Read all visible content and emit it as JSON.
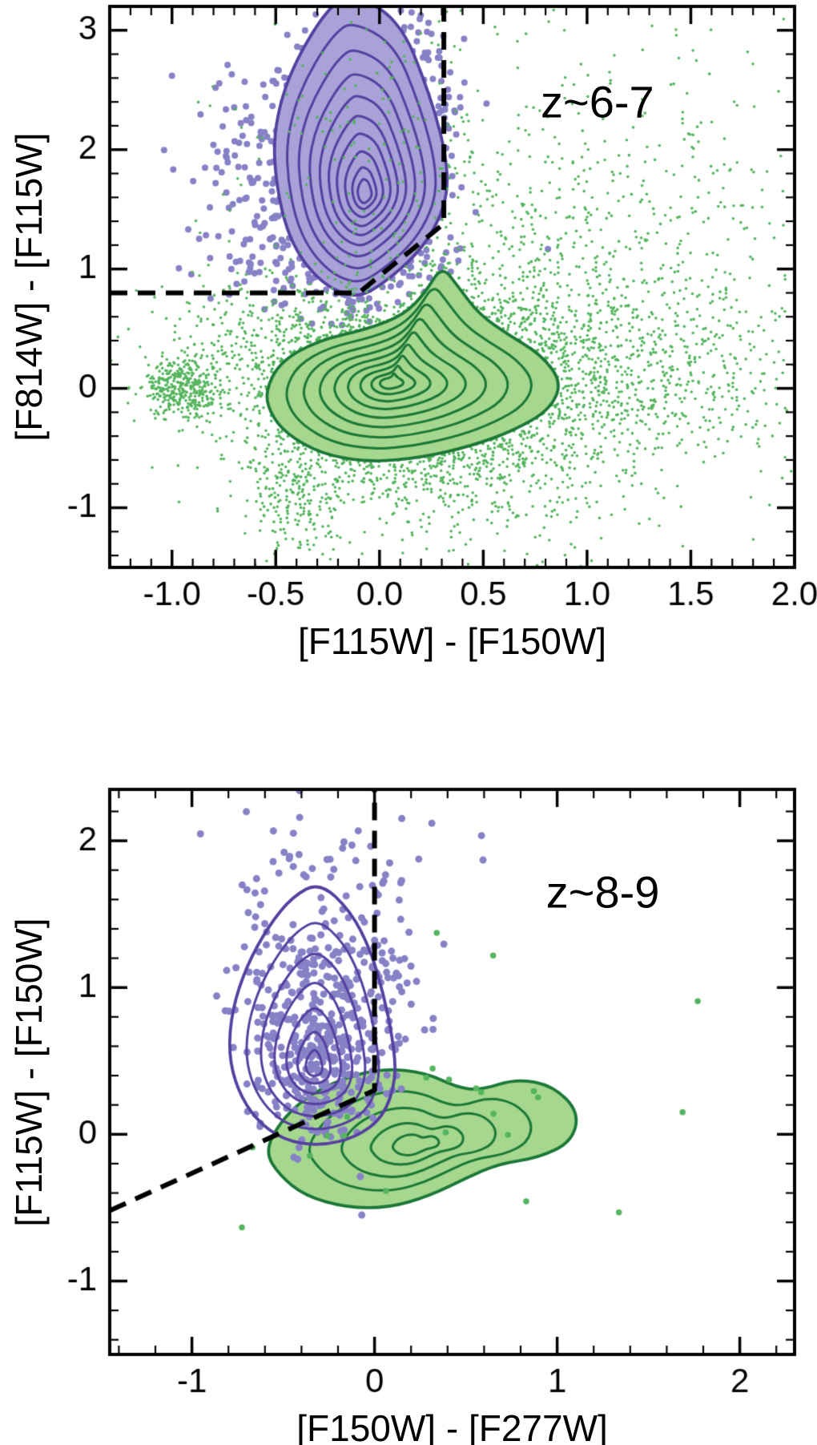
{
  "page": {
    "background": "#ffffff"
  },
  "colors": {
    "purple_point": "#8781c6",
    "purple_contour": "#5540a0",
    "purple_fill": "#a9a2d8",
    "green_point": "#55b45e",
    "green_contour": "#1b7837",
    "green_fill": "#a6d78e",
    "selection_line": "#000000",
    "axis": "#000000"
  },
  "chart_data": [
    {
      "type": "scatter",
      "annotation": {
        "text": "z~6-7",
        "x": 1.05,
        "y": 2.4
      },
      "xlabel": "[F115W] - [F150W]",
      "ylabel": "[F814W] - [F115W]",
      "xlim": [
        -1.3,
        2.0
      ],
      "ylim": [
        -1.5,
        3.2
      ],
      "xticks": {
        "values": [
          -1.0,
          -0.5,
          0.0,
          0.5,
          1.0,
          1.5,
          2.0
        ],
        "labels": [
          "-1.0",
          "-0.5",
          "0.0",
          "0.5",
          "1.0",
          "1.5",
          "2.0"
        ],
        "minor_step": 0.1
      },
      "yticks": {
        "values": [
          -1,
          0,
          1,
          2,
          3
        ],
        "labels": [
          "-1",
          "0",
          "1",
          "2",
          "3"
        ],
        "minor_step": 0.2
      },
      "grid": false,
      "selection_line": {
        "style": "dashed",
        "color": "#000000",
        "points": [
          [
            -1.3,
            0.8
          ],
          [
            -0.1,
            0.8
          ],
          [
            0.31,
            1.38
          ],
          [
            0.31,
            3.2
          ]
        ]
      },
      "series": [
        {
          "id": "purple-scatter",
          "role": "scatter",
          "color": "#8781c6",
          "marker_size": 8,
          "clusters": [
            {
              "cx": -0.1,
              "cy": 1.75,
              "sx": 0.17,
              "sy": 0.48,
              "n": 1000
            },
            {
              "cx": -0.08,
              "cy": 2.6,
              "sx": 0.18,
              "sy": 0.32,
              "n": 280
            },
            {
              "cx": -0.35,
              "cy": 1.7,
              "sx": 0.22,
              "sy": 0.5,
              "n": 230
            },
            {
              "cx": -0.12,
              "cy": 1.05,
              "sx": 0.28,
              "sy": 0.18,
              "n": 110
            },
            {
              "cx": -0.7,
              "cy": 1.8,
              "sx": 0.16,
              "sy": 0.45,
              "n": 45
            },
            {
              "cx": 0.12,
              "cy": 2.25,
              "sx": 0.16,
              "sy": 0.45,
              "n": 120
            }
          ]
        },
        {
          "id": "purple-contours",
          "role": "contour",
          "stroke": "#5540a0",
          "fill": "#a9a2d8",
          "peak": [
            -0.07,
            1.62
          ],
          "levels": [
            1,
            0.86,
            0.73,
            0.61,
            0.5,
            0.4,
            0.31,
            0.22,
            0.14,
            0.08
          ],
          "outline": [
            [
              -0.15,
              3.3
            ],
            [
              0.02,
              3.18
            ],
            [
              0.13,
              2.95
            ],
            [
              0.2,
              2.65
            ],
            [
              0.27,
              2.3
            ],
            [
              0.32,
              1.95
            ],
            [
              0.33,
              1.65
            ],
            [
              0.28,
              1.38
            ],
            [
              0.18,
              1.12
            ],
            [
              0.02,
              0.88
            ],
            [
              -0.1,
              0.76
            ],
            [
              -0.22,
              0.82
            ],
            [
              -0.32,
              0.96
            ],
            [
              -0.4,
              1.15
            ],
            [
              -0.46,
              1.4
            ],
            [
              -0.5,
              1.75
            ],
            [
              -0.51,
              2.1
            ],
            [
              -0.47,
              2.45
            ],
            [
              -0.4,
              2.75
            ],
            [
              -0.3,
              3.05
            ],
            [
              -0.22,
              3.22
            ]
          ]
        },
        {
          "id": "green-scatter",
          "role": "scatter",
          "color": "#55b45e",
          "marker_size": 3.6,
          "clusters": [
            {
              "cx": 0.1,
              "cy": -0.02,
              "sx": 0.32,
              "sy": 0.3,
              "n": 3500
            },
            {
              "cx": 0.5,
              "cy": 0.15,
              "sx": 0.45,
              "sy": 0.5,
              "n": 1500
            },
            {
              "cx": -0.95,
              "cy": 0.0,
              "sx": 0.1,
              "sy": 0.13,
              "n": 380
            },
            {
              "cx": 0.9,
              "cy": 1.1,
              "sx": 0.55,
              "sy": 0.75,
              "n": 550
            },
            {
              "cx": -0.42,
              "cy": -0.85,
              "sx": 0.12,
              "sy": 0.3,
              "n": 220
            },
            {
              "cx": 0.3,
              "cy": -0.75,
              "sx": 0.45,
              "sy": 0.3,
              "n": 350
            },
            {
              "cx": 1.35,
              "cy": 0.1,
              "sx": 0.4,
              "sy": 0.45,
              "n": 400
            },
            {
              "cx": 0.1,
              "cy": 2.3,
              "sx": 0.45,
              "sy": 0.55,
              "n": 130
            },
            {
              "cx": 1.6,
              "cy": 1.8,
              "sx": 0.35,
              "sy": 0.7,
              "n": 90
            },
            {
              "cx": -0.6,
              "cy": 0.4,
              "sx": 0.25,
              "sy": 0.3,
              "n": 250
            }
          ]
        },
        {
          "id": "green-contours",
          "role": "contour",
          "stroke": "#1b7837",
          "fill": "#a6d78e",
          "peak": [
            0.05,
            0.05
          ],
          "levels": [
            1,
            0.84,
            0.7,
            0.57,
            0.45,
            0.34,
            0.24,
            0.15,
            0.08
          ],
          "outline": [
            [
              -0.55,
              -0.02
            ],
            [
              -0.48,
              0.22
            ],
            [
              -0.3,
              0.4
            ],
            [
              -0.05,
              0.5
            ],
            [
              0.12,
              0.62
            ],
            [
              0.22,
              0.8
            ],
            [
              0.3,
              1.03
            ],
            [
              0.38,
              0.85
            ],
            [
              0.48,
              0.62
            ],
            [
              0.62,
              0.45
            ],
            [
              0.78,
              0.28
            ],
            [
              0.88,
              0.05
            ],
            [
              0.82,
              -0.18
            ],
            [
              0.65,
              -0.35
            ],
            [
              0.45,
              -0.48
            ],
            [
              0.2,
              -0.58
            ],
            [
              -0.05,
              -0.62
            ],
            [
              -0.28,
              -0.55
            ],
            [
              -0.45,
              -0.38
            ],
            [
              -0.53,
              -0.2
            ]
          ]
        }
      ]
    },
    {
      "type": "scatter",
      "annotation": {
        "text": "z~8-9",
        "x": 1.25,
        "y": 1.65
      },
      "xlabel": "[F150W] - [F277W]",
      "ylabel": "[F115W] - [F150W]",
      "xlim": [
        -1.45,
        2.3
      ],
      "ylim": [
        -1.5,
        2.35
      ],
      "xticks": {
        "values": [
          -1,
          0,
          1,
          2
        ],
        "labels": [
          "-1",
          "0",
          "1",
          "2"
        ],
        "minor_step": 0.2
      },
      "yticks": {
        "values": [
          -1,
          0,
          1,
          2
        ],
        "labels": [
          "-1",
          "0",
          "1",
          "2"
        ],
        "minor_step": 0.2
      },
      "grid": false,
      "selection_line": {
        "style": "dashed",
        "color": "#000000",
        "points": [
          [
            -1.45,
            -0.52
          ],
          [
            0.0,
            0.3
          ],
          [
            0.0,
            2.35
          ]
        ]
      },
      "series": [
        {
          "id": "green-contours",
          "role": "contour",
          "stroke": "#1b7837",
          "fill": "#a6d78e",
          "peak": [
            0.22,
            -0.08
          ],
          "levels": [
            1,
            0.72,
            0.5,
            0.3,
            0.15
          ],
          "outline": [
            [
              -0.6,
              -0.12
            ],
            [
              -0.52,
              0.08
            ],
            [
              -0.38,
              0.25
            ],
            [
              -0.18,
              0.38
            ],
            [
              0.05,
              0.45
            ],
            [
              0.28,
              0.42
            ],
            [
              0.45,
              0.32
            ],
            [
              0.58,
              0.3
            ],
            [
              0.78,
              0.38
            ],
            [
              0.98,
              0.33
            ],
            [
              1.12,
              0.15
            ],
            [
              1.08,
              -0.05
            ],
            [
              0.9,
              -0.16
            ],
            [
              0.68,
              -0.2
            ],
            [
              0.5,
              -0.3
            ],
            [
              0.3,
              -0.42
            ],
            [
              0.08,
              -0.5
            ],
            [
              -0.15,
              -0.5
            ],
            [
              -0.38,
              -0.42
            ],
            [
              -0.52,
              -0.28
            ]
          ]
        },
        {
          "id": "purple-scatter",
          "role": "scatter",
          "color": "#8781c6",
          "marker_size": 9,
          "clusters": [
            {
              "cx": -0.3,
              "cy": 0.5,
              "sx": 0.16,
              "sy": 0.26,
              "n": 280
            },
            {
              "cx": -0.25,
              "cy": 1.15,
              "sx": 0.2,
              "sy": 0.28,
              "n": 110
            },
            {
              "cx": -0.2,
              "cy": 1.85,
              "sx": 0.3,
              "sy": 0.18,
              "n": 45
            },
            {
              "cx": 0.0,
              "cy": 0.8,
              "sx": 0.15,
              "sy": 0.45,
              "n": 60
            },
            {
              "cx": -0.55,
              "cy": 0.9,
              "sx": 0.15,
              "sy": 0.3,
              "n": 50
            }
          ]
        },
        {
          "id": "purple-contours",
          "role": "contour",
          "stroke": "#5540a0",
          "fill": null,
          "peak": [
            -0.33,
            0.45
          ],
          "levels": [
            1,
            0.8,
            0.63,
            0.47,
            0.33,
            0.2,
            0.1
          ],
          "outline": [
            [
              -0.3,
              1.72
            ],
            [
              -0.13,
              1.52
            ],
            [
              -0.02,
              1.25
            ],
            [
              0.05,
              0.95
            ],
            [
              0.1,
              0.65
            ],
            [
              0.12,
              0.38
            ],
            [
              0.05,
              0.12
            ],
            [
              -0.1,
              -0.02
            ],
            [
              -0.3,
              -0.08
            ],
            [
              -0.5,
              -0.04
            ],
            [
              -0.65,
              0.1
            ],
            [
              -0.75,
              0.3
            ],
            [
              -0.8,
              0.55
            ],
            [
              -0.78,
              0.85
            ],
            [
              -0.7,
              1.15
            ],
            [
              -0.58,
              1.42
            ],
            [
              -0.45,
              1.62
            ]
          ]
        },
        {
          "id": "green-scatter",
          "role": "scatter",
          "color": "#55b45e",
          "marker_size": 7.5,
          "clusters": [
            {
              "cx": 0.35,
              "cy": 0.0,
              "sx": 0.45,
              "sy": 0.25,
              "n": 10
            },
            {
              "cx": 1.15,
              "cy": 0.15,
              "sx": 0.35,
              "sy": 0.35,
              "n": 7
            },
            {
              "cx": 0.3,
              "cy": 1.6,
              "sx": 0.5,
              "sy": 0.45,
              "n": 3
            },
            {
              "cx": -0.45,
              "cy": -0.35,
              "sx": 0.25,
              "sy": 0.15,
              "n": 3
            },
            {
              "cx": 1.8,
              "cy": 0.9,
              "sx": 0.05,
              "sy": 0.05,
              "n": 1
            }
          ]
        }
      ]
    }
  ]
}
